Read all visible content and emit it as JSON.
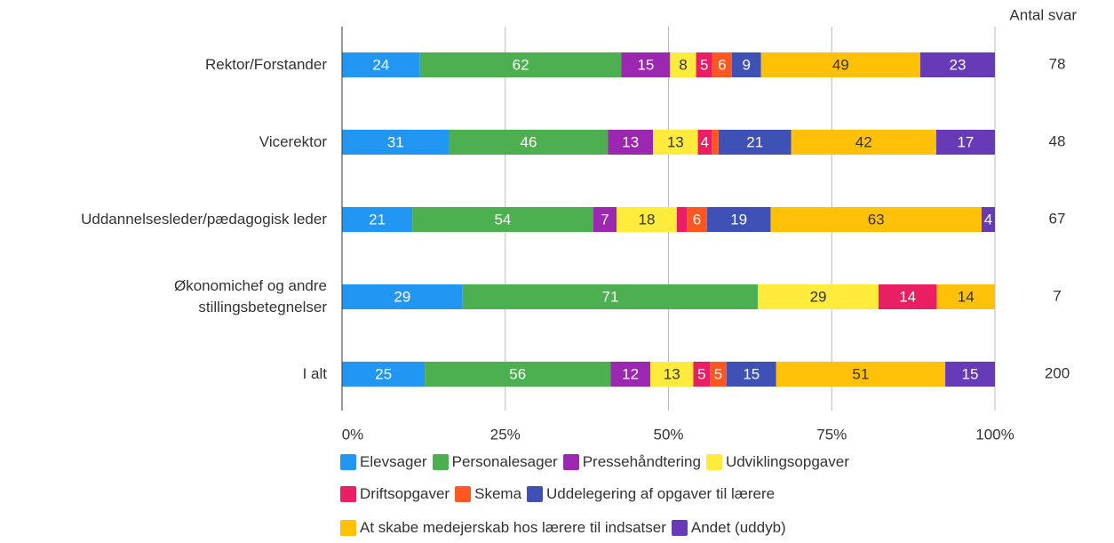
{
  "chart_data": {
    "type": "bar_stacked_100",
    "categories": [
      "Rektor/Forstander",
      "Vicerektor",
      "Uddannelsesleder/pædagogisk leder",
      "Økonomichef og andre\nstillingsbetegnelser",
      "I alt"
    ],
    "series": [
      {
        "name": "Elevsager",
        "color": "#2196f3",
        "values": [
          24,
          31,
          21,
          29,
          25
        ]
      },
      {
        "name": "Personalesager",
        "color": "#4caf50",
        "values": [
          62,
          46,
          54,
          71,
          56
        ]
      },
      {
        "name": "Pressehåndtering",
        "color": "#9c27b0",
        "values": [
          15,
          13,
          7,
          null,
          12
        ]
      },
      {
        "name": "Udviklingsopgaver",
        "color": "#ffeb3b",
        "values": [
          8,
          13,
          18,
          29,
          13
        ]
      },
      {
        "name": "Driftsopgaver",
        "color": "#e91e63",
        "values": [
          5,
          4,
          3,
          14,
          5
        ],
        "value_labels": [
          "5",
          "4",
          null,
          "14",
          "5"
        ]
      },
      {
        "name": "Skema",
        "color": "#ff5722",
        "values": [
          6,
          2,
          6,
          null,
          5
        ],
        "value_labels": [
          "6",
          null,
          "6",
          null,
          "5"
        ]
      },
      {
        "name": "Uddelegering af opgaver til lærere",
        "color": "#3f51b5",
        "values": [
          9,
          21,
          19,
          null,
          15
        ]
      },
      {
        "name": "At skabe medejerskab hos lærere til indsatser",
        "color": "#ffc107",
        "values": [
          49,
          42,
          63,
          14,
          51
        ]
      },
      {
        "name": "Andet (uddyb)",
        "color": "#673ab7",
        "values": [
          23,
          17,
          4,
          null,
          15
        ]
      }
    ],
    "xlim": [
      0,
      100
    ],
    "xticks": [
      {
        "value": 0,
        "label": "0%"
      },
      {
        "value": 25,
        "label": "25%"
      },
      {
        "value": 50,
        "label": "50%"
      },
      {
        "value": 75,
        "label": "75%"
      },
      {
        "value": 100,
        "label": "100%"
      }
    ],
    "grid": true,
    "count_header": "Antal svar",
    "counts": [
      78,
      48,
      67,
      7,
      200
    ]
  }
}
